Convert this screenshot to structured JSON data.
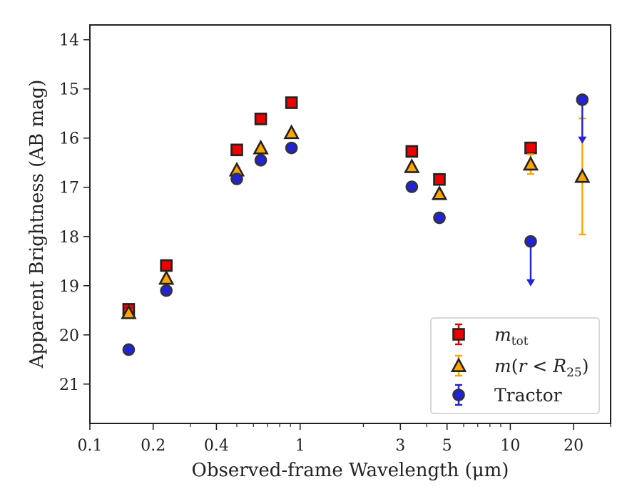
{
  "chart_data": {
    "type": "scatter",
    "xlabel": "Observed-frame Wavelength (μm)",
    "ylabel": "Apparent Brightness (AB mag)",
    "x_scale": "log",
    "xlim": [
      0.1,
      30
    ],
    "ylim": [
      21.8,
      13.7
    ],
    "y_inverted": true,
    "x_ticks": [
      {
        "value": 0.1,
        "label": "0.1"
      },
      {
        "value": 0.2,
        "label": "0.2"
      },
      {
        "value": 0.4,
        "label": "0.4"
      },
      {
        "value": 1,
        "label": "1"
      },
      {
        "value": 3,
        "label": "3"
      },
      {
        "value": 5,
        "label": "5"
      },
      {
        "value": 10,
        "label": "10"
      },
      {
        "value": 20,
        "label": "20"
      }
    ],
    "y_ticks": [
      {
        "value": 14,
        "label": "14"
      },
      {
        "value": 15,
        "label": "15"
      },
      {
        "value": 16,
        "label": "16"
      },
      {
        "value": 17,
        "label": "17"
      },
      {
        "value": 18,
        "label": "18"
      },
      {
        "value": 19,
        "label": "19"
      },
      {
        "value": 20,
        "label": "20"
      },
      {
        "value": 21,
        "label": "21"
      }
    ],
    "legend_position": "bottom-right",
    "series": [
      {
        "name": "m_tot",
        "legend_label": "m_tot",
        "marker": "square",
        "color": "#ee0000",
        "errcolor": "#dd0000",
        "points": [
          {
            "x": 0.153,
            "y": 19.48,
            "err": 0.05
          },
          {
            "x": 0.231,
            "y": 18.59,
            "err": 0.05
          },
          {
            "x": 0.5,
            "y": 16.24,
            "err": 0.04
          },
          {
            "x": 0.65,
            "y": 15.61,
            "err": 0.04
          },
          {
            "x": 0.91,
            "y": 15.28,
            "err": 0.04
          },
          {
            "x": 3.4,
            "y": 16.27,
            "err": 0.04
          },
          {
            "x": 4.6,
            "y": 16.84,
            "err": 0.04
          },
          {
            "x": 12.5,
            "y": 16.2,
            "err": 0.05
          }
        ]
      },
      {
        "name": "m(r<R25)",
        "legend_label": "m(r<R25)",
        "marker": "triangle",
        "color": "#ffa500",
        "errcolor": "#ffa500",
        "points": [
          {
            "x": 0.153,
            "y": 19.55,
            "err": 0.05
          },
          {
            "x": 0.231,
            "y": 18.85,
            "err": 0.05
          },
          {
            "x": 0.5,
            "y": 16.65,
            "err": 0.04
          },
          {
            "x": 0.65,
            "y": 16.2,
            "err": 0.04
          },
          {
            "x": 0.91,
            "y": 15.89,
            "err": 0.04
          },
          {
            "x": 3.4,
            "y": 16.58,
            "err": 0.04
          },
          {
            "x": 4.6,
            "y": 17.13,
            "err": 0.04
          },
          {
            "x": 12.5,
            "y": 16.53,
            "err": 0.2
          },
          {
            "x": 22.0,
            "y": 16.78,
            "err": 1.18
          }
        ]
      },
      {
        "name": "Tractor",
        "legend_label": "Tractor",
        "marker": "circle",
        "color": "#2222dd",
        "errcolor": "#2222dd",
        "points": [
          {
            "x": 0.153,
            "y": 20.3,
            "err": 0.05
          },
          {
            "x": 0.231,
            "y": 19.1,
            "err": 0.05
          },
          {
            "x": 0.5,
            "y": 16.83,
            "err": 0.05
          },
          {
            "x": 0.65,
            "y": 16.45,
            "err": 0.05
          },
          {
            "x": 0.91,
            "y": 16.2,
            "err": 0.05
          },
          {
            "x": 3.4,
            "y": 16.99,
            "err": 0.05
          },
          {
            "x": 4.6,
            "y": 17.62,
            "err": 0.05
          },
          {
            "x": 12.5,
            "y": 18.1,
            "upper_limit": true,
            "limit_to": 19.0
          },
          {
            "x": 22.0,
            "y": 15.22,
            "upper_limit": true,
            "limit_to": 16.1
          }
        ]
      }
    ]
  }
}
